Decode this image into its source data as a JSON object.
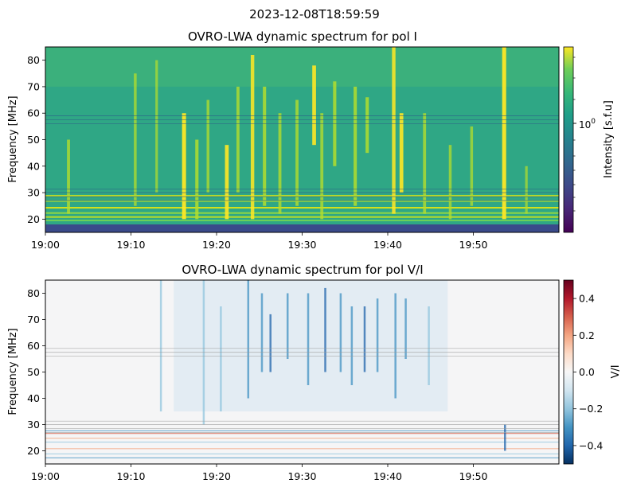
{
  "suptitle": "2023-12-08T18:59:59",
  "chart_data": [
    {
      "type": "heatmap",
      "title": "OVRO-LWA dynamic spectrum for pol I",
      "ylabel": "Frequency [MHz]",
      "xlabel": "",
      "x_ticks": [
        "19:00",
        "19:10",
        "19:20",
        "19:30",
        "19:40",
        "19:50"
      ],
      "x_tick_minutes": [
        0,
        10,
        20,
        30,
        40,
        50
      ],
      "xlim_minutes": [
        0,
        60
      ],
      "y_ticks": [
        20,
        30,
        40,
        50,
        60,
        70,
        80
      ],
      "ylim": [
        15,
        85
      ],
      "colormap": "viridis",
      "colorbar": {
        "label": "Intensity [s.f.u]",
        "scale": "log",
        "tick_label": "10^0",
        "tick_value": 1
      },
      "bursts": [
        {
          "t": 2.7,
          "f_lo": 22,
          "f_hi": 50,
          "s": 0.6
        },
        {
          "t": 10.5,
          "f_lo": 25,
          "f_hi": 75,
          "s": 0.5
        },
        {
          "t": 13.0,
          "f_lo": 30,
          "f_hi": 80,
          "s": 0.4
        },
        {
          "t": 16.2,
          "f_lo": 20,
          "f_hi": 60,
          "s": 1.0
        },
        {
          "t": 17.7,
          "f_lo": 20,
          "f_hi": 50,
          "s": 0.7
        },
        {
          "t": 19.0,
          "f_lo": 30,
          "f_hi": 65,
          "s": 0.5
        },
        {
          "t": 21.2,
          "f_lo": 20,
          "f_hi": 48,
          "s": 0.9
        },
        {
          "t": 22.5,
          "f_lo": 30,
          "f_hi": 70,
          "s": 0.6
        },
        {
          "t": 24.2,
          "f_lo": 20,
          "f_hi": 82,
          "s": 0.8
        },
        {
          "t": 25.6,
          "f_lo": 25,
          "f_hi": 70,
          "s": 0.7
        },
        {
          "t": 27.4,
          "f_lo": 22,
          "f_hi": 60,
          "s": 0.6
        },
        {
          "t": 29.4,
          "f_lo": 25,
          "f_hi": 65,
          "s": 0.6
        },
        {
          "t": 31.4,
          "f_lo": 48,
          "f_hi": 78,
          "s": 0.9
        },
        {
          "t": 32.3,
          "f_lo": 20,
          "f_hi": 60,
          "s": 0.6
        },
        {
          "t": 33.8,
          "f_lo": 40,
          "f_hi": 72,
          "s": 0.7
        },
        {
          "t": 36.2,
          "f_lo": 25,
          "f_hi": 70,
          "s": 0.7
        },
        {
          "t": 37.6,
          "f_lo": 45,
          "f_hi": 66,
          "s": 0.7
        },
        {
          "t": 40.7,
          "f_lo": 22,
          "f_hi": 85,
          "s": 0.8
        },
        {
          "t": 41.6,
          "f_lo": 30,
          "f_hi": 60,
          "s": 0.9
        },
        {
          "t": 44.3,
          "f_lo": 22,
          "f_hi": 60,
          "s": 0.6
        },
        {
          "t": 47.3,
          "f_lo": 20,
          "f_hi": 48,
          "s": 0.5
        },
        {
          "t": 49.8,
          "f_lo": 25,
          "f_hi": 55,
          "s": 0.5
        },
        {
          "t": 53.6,
          "f_lo": 20,
          "f_hi": 85,
          "s": 1.0
        },
        {
          "t": 56.2,
          "f_lo": 22,
          "f_hi": 40,
          "s": 0.4
        }
      ]
    },
    {
      "type": "heatmap",
      "title": "OVRO-LWA dynamic spectrum for pol V/I",
      "ylabel": "Frequency [MHz]",
      "xlabel": "",
      "x_ticks": [
        "19:00",
        "19:10",
        "19:20",
        "19:30",
        "19:40",
        "19:50"
      ],
      "x_tick_minutes": [
        0,
        10,
        20,
        30,
        40,
        50
      ],
      "xlim_minutes": [
        0,
        60
      ],
      "y_ticks": [
        20,
        30,
        40,
        50,
        60,
        70,
        80
      ],
      "ylim": [
        15,
        85
      ],
      "colormap": "RdBu_r",
      "colorbar": {
        "label": "V/I",
        "scale": "linear",
        "range": [
          -0.5,
          0.5
        ],
        "ticks": [
          "0.4",
          "0.2",
          "0.0",
          "−0.2",
          "−0.4"
        ],
        "tick_values": [
          0.4,
          0.2,
          0.0,
          -0.2,
          -0.4
        ]
      },
      "bursts": [
        {
          "t": 13.5,
          "f_lo": 35,
          "f_hi": 85,
          "v": -0.1
        },
        {
          "t": 18.5,
          "f_lo": 30,
          "f_hi": 85,
          "v": -0.12
        },
        {
          "t": 20.5,
          "f_lo": 35,
          "f_hi": 75,
          "v": -0.15
        },
        {
          "t": 23.7,
          "f_lo": 40,
          "f_hi": 85,
          "v": -0.25
        },
        {
          "t": 25.3,
          "f_lo": 50,
          "f_hi": 80,
          "v": -0.3
        },
        {
          "t": 26.3,
          "f_lo": 50,
          "f_hi": 72,
          "v": -0.4
        },
        {
          "t": 28.3,
          "f_lo": 55,
          "f_hi": 80,
          "v": -0.25
        },
        {
          "t": 30.7,
          "f_lo": 45,
          "f_hi": 80,
          "v": -0.3
        },
        {
          "t": 32.7,
          "f_lo": 50,
          "f_hi": 82,
          "v": -0.35
        },
        {
          "t": 34.5,
          "f_lo": 50,
          "f_hi": 80,
          "v": -0.3
        },
        {
          "t": 35.8,
          "f_lo": 45,
          "f_hi": 75,
          "v": -0.3
        },
        {
          "t": 37.3,
          "f_lo": 50,
          "f_hi": 75,
          "v": -0.35
        },
        {
          "t": 38.8,
          "f_lo": 50,
          "f_hi": 78,
          "v": -0.3
        },
        {
          "t": 40.9,
          "f_lo": 40,
          "f_hi": 80,
          "v": -0.25
        },
        {
          "t": 42.1,
          "f_lo": 55,
          "f_hi": 78,
          "v": -0.3
        },
        {
          "t": 44.8,
          "f_lo": 45,
          "f_hi": 75,
          "v": -0.15
        },
        {
          "t": 53.7,
          "f_lo": 20,
          "f_hi": 30,
          "v": -0.35
        }
      ]
    }
  ]
}
